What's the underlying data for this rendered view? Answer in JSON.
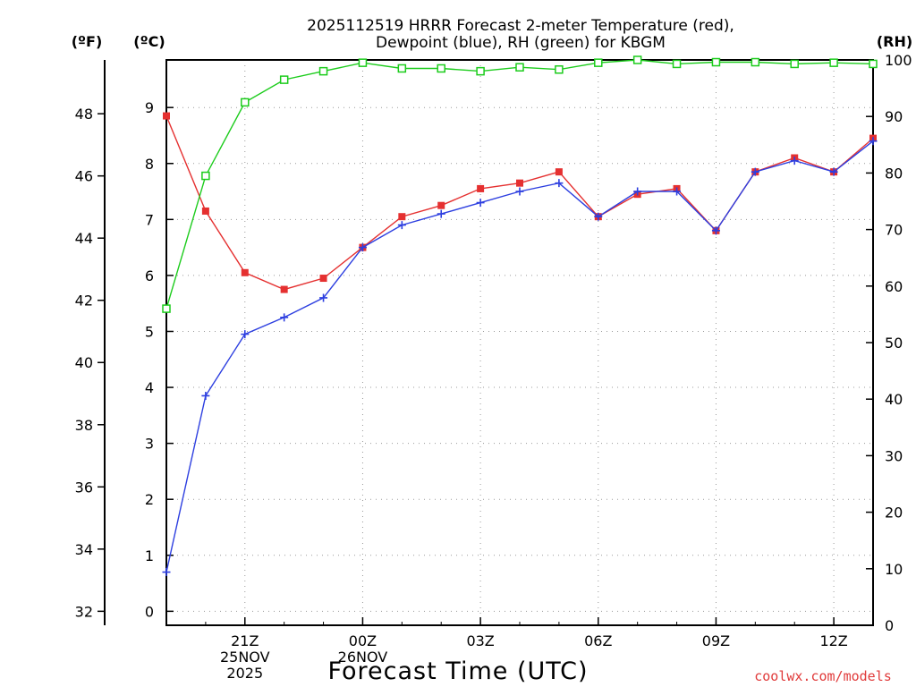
{
  "chart_data": {
    "type": "line",
    "title_line1": "2025112519 HRRR Forecast 2-meter Temperature (red),",
    "title_line2": "Dewpoint (blue), RH (green) for KBGM",
    "xlabel": "Forecast Time (UTC)",
    "credit": "coolwx.com/models",
    "units": {
      "fahrenheit": "(ºF)",
      "celsius": "(ºC)",
      "rh": "(RH)"
    },
    "x_hours": [
      0,
      1,
      2,
      3,
      4,
      5,
      6,
      7,
      8,
      9,
      10,
      11,
      12,
      13,
      14,
      15,
      16,
      17,
      18
    ],
    "x_ticks": [
      {
        "hour": 2,
        "label": "21Z",
        "date": "25NOV",
        "year": "2025"
      },
      {
        "hour": 5,
        "label": "00Z",
        "date": "26NOV",
        "year": ""
      },
      {
        "hour": 8,
        "label": "03Z",
        "date": "",
        "year": ""
      },
      {
        "hour": 11,
        "label": "06Z",
        "date": "",
        "year": ""
      },
      {
        "hour": 14,
        "label": "09Z",
        "date": "",
        "year": ""
      },
      {
        "hour": 17,
        "label": "12Z",
        "date": "",
        "year": ""
      }
    ],
    "xlim": [
      0,
      18
    ],
    "celsius_axis": {
      "ylim": [
        -0.25,
        9.85
      ],
      "ticks": [
        "0",
        "1",
        "2",
        "3",
        "4",
        "5",
        "6",
        "7",
        "8",
        "9"
      ]
    },
    "fahrenheit_axis": {
      "ticks": [
        "32",
        "34",
        "36",
        "38",
        "40",
        "42",
        "44",
        "46",
        "48"
      ]
    },
    "rh_axis": {
      "ylim": [
        0,
        100
      ],
      "ticks": [
        "0",
        "10",
        "20",
        "30",
        "40",
        "50",
        "60",
        "70",
        "80",
        "90",
        "100"
      ]
    },
    "colors": {
      "temperature": "#e53030",
      "dewpoint": "#2d3fe0",
      "rh": "#1ccc1c",
      "grid": "#999999"
    },
    "series": [
      {
        "name": "Temperature",
        "axis": "celsius",
        "marker": "filled-square",
        "values": [
          8.85,
          7.15,
          6.05,
          5.75,
          5.95,
          6.5,
          7.05,
          7.25,
          7.55,
          7.65,
          7.85,
          7.05,
          7.45,
          7.55,
          6.8,
          7.85,
          8.1,
          7.85,
          8.45
        ]
      },
      {
        "name": "Dewpoint",
        "axis": "celsius",
        "marker": "plus",
        "values": [
          0.7,
          3.85,
          4.95,
          5.25,
          5.6,
          6.5,
          6.9,
          7.1,
          7.3,
          7.5,
          7.65,
          7.05,
          7.5,
          7.5,
          6.8,
          7.85,
          8.05,
          7.85,
          8.4
        ]
      },
      {
        "name": "RH",
        "axis": "rh",
        "marker": "open-square",
        "values": [
          56,
          79.5,
          92.5,
          96.5,
          98,
          99.5,
          98.5,
          98.5,
          98,
          98.7,
          98.3,
          99.5,
          100,
          99.3,
          99.6,
          99.6,
          99.3,
          99.5,
          99.3
        ]
      }
    ]
  }
}
